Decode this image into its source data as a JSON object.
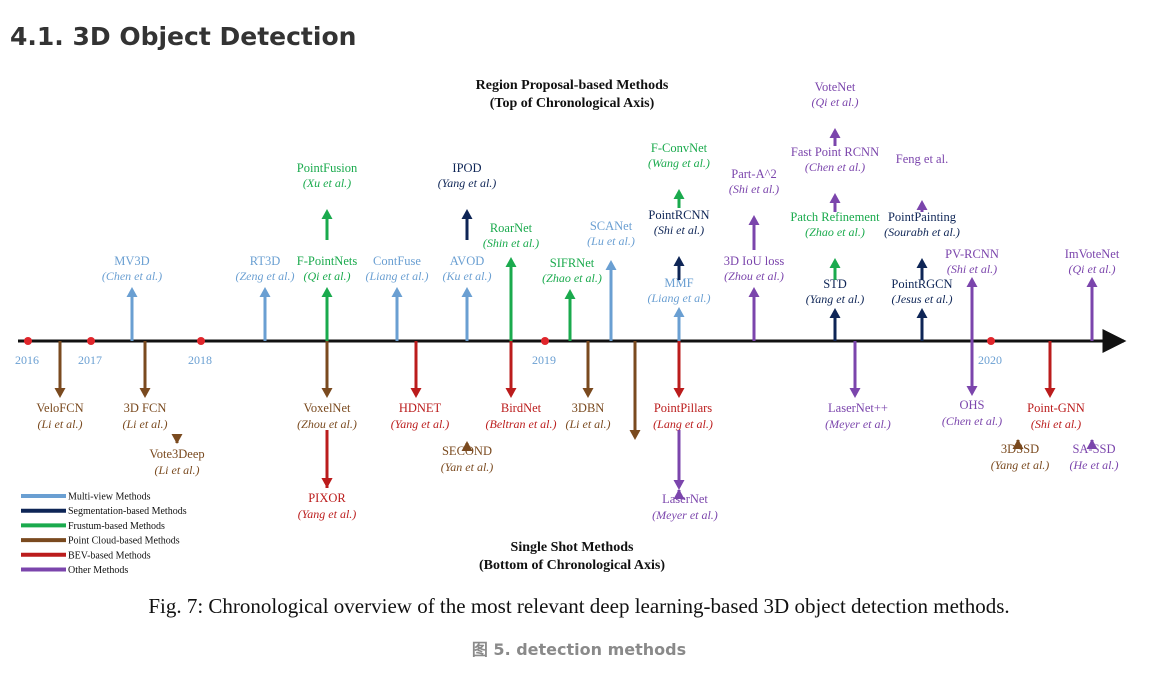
{
  "section_title": "4.1.  3D Object Detection",
  "top_heading": {
    "line1": "Region Proposal-based Methods",
    "line2": "(Top of Chronological Axis)"
  },
  "bottom_heading": {
    "line1": "Single Shot Methods",
    "line2": "(Bottom of Chronological Axis)"
  },
  "caption": "Fig. 7: Chronological overview of the most relevant deep learning-based 3D object detection methods.",
  "subcaption": "图 5. detection methods",
  "years": [
    "2016",
    "2017",
    "2018",
    "2019",
    "2020"
  ],
  "colors": {
    "multiview": "#6a9fd2",
    "segmentation": "#0e2556",
    "frustum": "#1aaa4d",
    "pointcloud": "#7a4a1f",
    "bev": "#bb1c1c",
    "other": "#7b45ac",
    "axis": "#111111",
    "year_dot": "#e0252b",
    "year_label": "#6a9fd2"
  },
  "legend": [
    {
      "key": "multiview",
      "label": "Multi-view Methods"
    },
    {
      "key": "segmentation",
      "label": "Segmentation-based Methods"
    },
    {
      "key": "frustum",
      "label": "Frustum-based Methods"
    },
    {
      "key": "pointcloud",
      "label": "Point Cloud-based Methods"
    },
    {
      "key": "bev",
      "label": "BEV-based Methods"
    },
    {
      "key": "other",
      "label": "Other Methods"
    }
  ],
  "methods": [
    {
      "name": "MV3D",
      "authors": "Chen et al.",
      "cat": "multiview",
      "side": "top"
    },
    {
      "name": "RT3D",
      "authors": "Zeng et al.",
      "cat": "multiview",
      "side": "top"
    },
    {
      "name": "F-PointNets",
      "authors": "Qi et al.",
      "cat": "frustum",
      "side": "top"
    },
    {
      "name": "PointFusion",
      "authors": "Xu et al.",
      "cat": "frustum",
      "side": "top"
    },
    {
      "name": "ContFuse",
      "authors": "Liang et al.",
      "cat": "multiview",
      "side": "top"
    },
    {
      "name": "AVOD",
      "authors": "Ku et al.",
      "cat": "multiview",
      "side": "top"
    },
    {
      "name": "IPOD",
      "authors": "Yang et al.",
      "cat": "segmentation",
      "side": "top"
    },
    {
      "name": "RoarNet",
      "authors": "Shin et al.",
      "cat": "frustum",
      "side": "top"
    },
    {
      "name": "SIFRNet",
      "authors": "Zhao et al.",
      "cat": "frustum",
      "side": "top"
    },
    {
      "name": "SCANet",
      "authors": "Lu et al.",
      "cat": "multiview",
      "side": "top"
    },
    {
      "name": "MMF",
      "authors": "Liang et al.",
      "cat": "multiview",
      "side": "top"
    },
    {
      "name": "PointRCNN",
      "authors": "Shi et al.",
      "cat": "segmentation",
      "side": "top"
    },
    {
      "name": "F-ConvNet",
      "authors": "Wang et al.",
      "cat": "frustum",
      "side": "top"
    },
    {
      "name": "3D IoU loss",
      "authors": "Zhou et al.",
      "cat": "other",
      "side": "top"
    },
    {
      "name": "Part-A^2",
      "authors": "Shi et al.",
      "cat": "other",
      "side": "top"
    },
    {
      "name": "STD",
      "authors": "Yang et al.",
      "cat": "segmentation",
      "side": "top"
    },
    {
      "name": "Patch Refinement",
      "authors": "Zhao et al.",
      "cat": "frustum",
      "side": "top"
    },
    {
      "name": "Fast Point RCNN",
      "authors": "Chen et al.",
      "cat": "other",
      "side": "top"
    },
    {
      "name": "VoteNet",
      "authors": "Qi et al.",
      "cat": "other",
      "side": "top"
    },
    {
      "name": "PointRGCN",
      "authors": "Jesus et al.",
      "cat": "segmentation",
      "side": "top"
    },
    {
      "name": "PointPainting",
      "authors": "Sourabh et al.",
      "cat": "segmentation",
      "side": "top"
    },
    {
      "name": "Feng et al.",
      "authors": "",
      "cat": "other",
      "side": "top"
    },
    {
      "name": "PV-RCNN",
      "authors": "Shi et al.",
      "cat": "other",
      "side": "top"
    },
    {
      "name": "ImVoteNet",
      "authors": "Qi et al.",
      "cat": "other",
      "side": "top"
    },
    {
      "name": "VeloFCN",
      "authors": "Li et al.",
      "cat": "pointcloud",
      "side": "bottom"
    },
    {
      "name": "3D FCN",
      "authors": "Li et al.",
      "cat": "pointcloud",
      "side": "bottom"
    },
    {
      "name": "Vote3Deep",
      "authors": "Li et al.",
      "cat": "pointcloud",
      "side": "bottom"
    },
    {
      "name": "VoxelNet",
      "authors": "Zhou et al.",
      "cat": "pointcloud",
      "side": "bottom"
    },
    {
      "name": "PIXOR",
      "authors": "Yang et al.",
      "cat": "bev",
      "side": "bottom"
    },
    {
      "name": "HDNET",
      "authors": "Yang et al.",
      "cat": "bev",
      "side": "bottom"
    },
    {
      "name": "SECOND",
      "authors": "Yan et al.",
      "cat": "pointcloud",
      "side": "bottom"
    },
    {
      "name": "BirdNet",
      "authors": "Beltran et al.",
      "cat": "bev",
      "side": "bottom"
    },
    {
      "name": "3DBN",
      "authors": "Li et al.",
      "cat": "pointcloud",
      "side": "bottom"
    },
    {
      "name": "PointPillars",
      "authors": "Lang et al.",
      "cat": "bev",
      "side": "bottom"
    },
    {
      "name": "LaserNet",
      "authors": "Meyer et al.",
      "cat": "other",
      "side": "bottom"
    },
    {
      "name": "LaserNet++",
      "authors": "Meyer et al.",
      "cat": "other",
      "side": "bottom"
    },
    {
      "name": "OHS",
      "authors": "Chen et al.",
      "cat": "other",
      "side": "bottom"
    },
    {
      "name": "3DSSD",
      "authors": "Yang et al.",
      "cat": "pointcloud",
      "side": "bottom"
    },
    {
      "name": "Point-GNN",
      "authors": "Shi et al.",
      "cat": "bev",
      "side": "bottom"
    },
    {
      "name": "SA-SSD",
      "authors": "He et al.",
      "cat": "other",
      "side": "bottom"
    }
  ]
}
